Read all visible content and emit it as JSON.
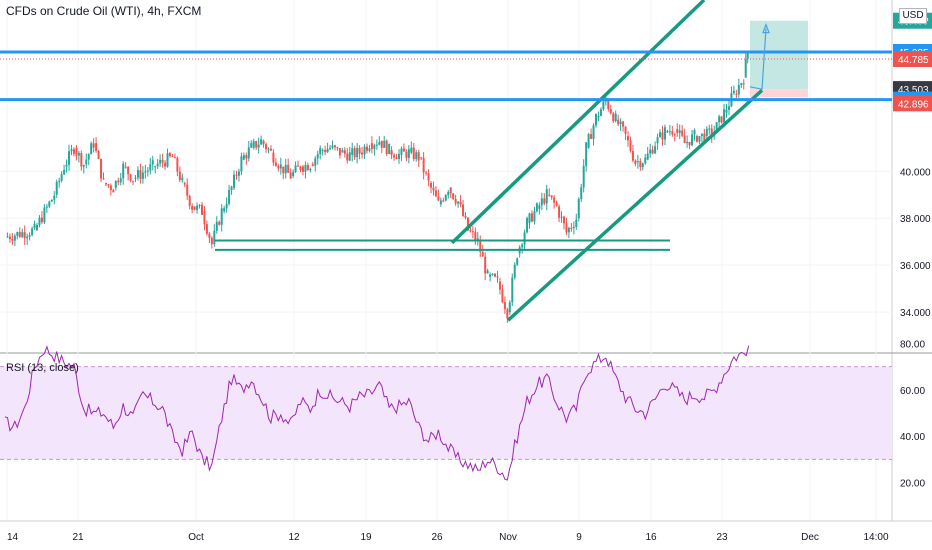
{
  "header": {
    "title": "CFDs on Crude Oil (WTI), 4h, FXCM",
    "currency": "USD"
  },
  "rsi": {
    "title": "RSI (13, close)",
    "upper_band": 70,
    "lower_band": 30,
    "y_ticks": [
      "80.00",
      "60.00",
      "40.00",
      "20.00"
    ]
  },
  "colors": {
    "up": "#26a69a",
    "down": "#ef5350",
    "blue_line": "#2196f3",
    "channel": "#179b7e",
    "rsi_line": "#9c27b0",
    "rsi_fill": "#f3e5fc",
    "target_zone": "#b2dfdb",
    "stop_zone": "#ffcdd2"
  },
  "chart_data": {
    "type": "candlestick",
    "title": "CFDs on Crude Oil (WTI), 4h, FXCM",
    "ylim": [
      32.3,
      47.3
    ],
    "y_ticks": [
      "34.000",
      "36.000",
      "38.000",
      "40.000"
    ],
    "x_ticks": [
      "14",
      "21",
      "Oct",
      "12",
      "19",
      "26",
      "Nov",
      "9",
      "16",
      "23",
      "Dec",
      "14:00"
    ],
    "price_labels": [
      {
        "value": "46.4??",
        "price": 46.417,
        "color": "#26a69a"
      },
      {
        "value": "45.085",
        "price": 45.085,
        "color": "#2196f3"
      },
      {
        "value": "44.785",
        "price": 44.785,
        "color": "#ef5350"
      },
      {
        "value": "43.503",
        "price": 43.503,
        "color": "#363a45"
      },
      {
        "value": "43.055",
        "price": 43.055,
        "color": "#2196f3"
      },
      {
        "value": "42.896",
        "price": 42.896,
        "color": "#ef5350"
      }
    ],
    "horizontal_levels": [
      45.085,
      43.055
    ],
    "current_price": 44.785,
    "support_lines": [
      {
        "from": [
          "Oct 1",
          37.05
        ],
        "to": [
          "Nov 16",
          37.05
        ]
      },
      {
        "from": [
          "Oct 1",
          36.65
        ],
        "to": [
          "Nov 16",
          36.65
        ]
      }
    ],
    "channel": {
      "lower": {
        "from": [
          "Nov 1",
          33.65
        ],
        "to": [
          "Nov 25",
          43.45
        ]
      },
      "upper": {
        "from": [
          "Oct 26",
          36.95
        ],
        "to": [
          "Nov 20",
          47.3
        ]
      }
    },
    "position": {
      "entry": 43.503,
      "target": 46.417,
      "stop": 43.15
    },
    "path_points": [
      {
        "day": "Nov 24",
        "price": 43.6
      },
      {
        "day": "Nov 25",
        "price": 43.5
      },
      {
        "day": "Nov 25",
        "price": 46.25
      }
    ],
    "price_path": [
      {
        "x": 0,
        "y": 37.2
      },
      {
        "x": 3,
        "y": 37.5
      },
      {
        "x": 5,
        "y": 39.0
      },
      {
        "x": 6,
        "y": 40.2
      },
      {
        "x": 7,
        "y": 41.0
      },
      {
        "x": 8,
        "y": 40.3
      },
      {
        "x": 9,
        "y": 41.2
      },
      {
        "x": 10,
        "y": 39.5
      },
      {
        "x": 11,
        "y": 39.3
      },
      {
        "x": 12,
        "y": 40.2
      },
      {
        "x": 13,
        "y": 39.7
      },
      {
        "x": 15,
        "y": 40.2
      },
      {
        "x": 17,
        "y": 40.6
      },
      {
        "x": 18,
        "y": 39.5
      },
      {
        "x": 19,
        "y": 38.5
      },
      {
        "x": 20,
        "y": 38.3
      },
      {
        "x": 21,
        "y": 36.9
      },
      {
        "x": 22,
        "y": 38.3
      },
      {
        "x": 23,
        "y": 39.3
      },
      {
        "x": 24,
        "y": 40.5
      },
      {
        "x": 25,
        "y": 41.0
      },
      {
        "x": 26,
        "y": 41.3
      },
      {
        "x": 27,
        "y": 40.8
      },
      {
        "x": 28,
        "y": 40.2
      },
      {
        "x": 29,
        "y": 39.8
      },
      {
        "x": 30,
        "y": 40.2
      },
      {
        "x": 31,
        "y": 40.3
      },
      {
        "x": 32,
        "y": 40.9
      },
      {
        "x": 33,
        "y": 41.0
      },
      {
        "x": 34,
        "y": 40.8
      },
      {
        "x": 35,
        "y": 40.7
      },
      {
        "x": 36,
        "y": 40.8
      },
      {
        "x": 37,
        "y": 41.2
      },
      {
        "x": 38,
        "y": 41.3
      },
      {
        "x": 39,
        "y": 40.9
      },
      {
        "x": 40,
        "y": 40.7
      },
      {
        "x": 41,
        "y": 40.8
      },
      {
        "x": 42,
        "y": 40.6
      },
      {
        "x": 43,
        "y": 39.5
      },
      {
        "x": 44,
        "y": 38.6
      },
      {
        "x": 45,
        "y": 39.3
      },
      {
        "x": 46,
        "y": 38.7
      },
      {
        "x": 47,
        "y": 37.5
      },
      {
        "x": 48,
        "y": 37.0
      },
      {
        "x": 49,
        "y": 35.5
      },
      {
        "x": 50,
        "y": 35.3
      },
      {
        "x": 51,
        "y": 34.0
      },
      {
        "x": 52,
        "y": 36.5
      },
      {
        "x": 53,
        "y": 37.8
      },
      {
        "x": 54,
        "y": 38.4
      },
      {
        "x": 55,
        "y": 39.0
      },
      {
        "x": 56,
        "y": 38.5
      },
      {
        "x": 57,
        "y": 37.4
      },
      {
        "x": 58,
        "y": 38.0
      },
      {
        "x": 59,
        "y": 41.0
      },
      {
        "x": 60,
        "y": 42.3
      },
      {
        "x": 61,
        "y": 43.0
      },
      {
        "x": 62,
        "y": 42.2
      },
      {
        "x": 63,
        "y": 41.5
      },
      {
        "x": 64,
        "y": 40.4
      },
      {
        "x": 65,
        "y": 40.5
      },
      {
        "x": 66,
        "y": 41.2
      },
      {
        "x": 67,
        "y": 41.7
      },
      {
        "x": 68,
        "y": 41.8
      },
      {
        "x": 69,
        "y": 41.2
      },
      {
        "x": 70,
        "y": 41.5
      },
      {
        "x": 71,
        "y": 41.5
      },
      {
        "x": 72,
        "y": 41.7
      },
      {
        "x": 73,
        "y": 42.5
      },
      {
        "x": 74,
        "y": 43.3
      },
      {
        "x": 75,
        "y": 44.0
      },
      {
        "x": 75.4,
        "y": 45.1
      }
    ],
    "rsi_path": [
      {
        "x": 0,
        "y": 46
      },
      {
        "x": 1,
        "y": 44
      },
      {
        "x": 2,
        "y": 52
      },
      {
        "x": 3,
        "y": 70
      },
      {
        "x": 4,
        "y": 78
      },
      {
        "x": 5,
        "y": 75
      },
      {
        "x": 6,
        "y": 72
      },
      {
        "x": 7,
        "y": 70
      },
      {
        "x": 8,
        "y": 52
      },
      {
        "x": 9,
        "y": 50
      },
      {
        "x": 10,
        "y": 50
      },
      {
        "x": 11,
        "y": 44
      },
      {
        "x": 12,
        "y": 53
      },
      {
        "x": 13,
        "y": 48
      },
      {
        "x": 14,
        "y": 58
      },
      {
        "x": 15,
        "y": 55
      },
      {
        "x": 16,
        "y": 52
      },
      {
        "x": 17,
        "y": 40
      },
      {
        "x": 18,
        "y": 34
      },
      {
        "x": 19,
        "y": 42
      },
      {
        "x": 20,
        "y": 30
      },
      {
        "x": 21,
        "y": 27
      },
      {
        "x": 22,
        "y": 48
      },
      {
        "x": 23,
        "y": 65
      },
      {
        "x": 24,
        "y": 60
      },
      {
        "x": 25,
        "y": 65
      },
      {
        "x": 26,
        "y": 57
      },
      {
        "x": 27,
        "y": 48
      },
      {
        "x": 28,
        "y": 50
      },
      {
        "x": 29,
        "y": 45
      },
      {
        "x": 30,
        "y": 55
      },
      {
        "x": 31,
        "y": 52
      },
      {
        "x": 32,
        "y": 60
      },
      {
        "x": 33,
        "y": 57
      },
      {
        "x": 34,
        "y": 55
      },
      {
        "x": 35,
        "y": 53
      },
      {
        "x": 36,
        "y": 57
      },
      {
        "x": 37,
        "y": 58
      },
      {
        "x": 38,
        "y": 62
      },
      {
        "x": 39,
        "y": 52
      },
      {
        "x": 40,
        "y": 53
      },
      {
        "x": 41,
        "y": 55
      },
      {
        "x": 42,
        "y": 44
      },
      {
        "x": 43,
        "y": 38
      },
      {
        "x": 44,
        "y": 42
      },
      {
        "x": 45,
        "y": 35
      },
      {
        "x": 46,
        "y": 30
      },
      {
        "x": 47,
        "y": 28
      },
      {
        "x": 48,
        "y": 25
      },
      {
        "x": 49,
        "y": 30
      },
      {
        "x": 50,
        "y": 27
      },
      {
        "x": 51,
        "y": 22
      },
      {
        "x": 52,
        "y": 40
      },
      {
        "x": 53,
        "y": 55
      },
      {
        "x": 54,
        "y": 62
      },
      {
        "x": 55,
        "y": 65
      },
      {
        "x": 56,
        "y": 55
      },
      {
        "x": 57,
        "y": 48
      },
      {
        "x": 58,
        "y": 52
      },
      {
        "x": 59,
        "y": 68
      },
      {
        "x": 60,
        "y": 72
      },
      {
        "x": 61,
        "y": 75
      },
      {
        "x": 62,
        "y": 65
      },
      {
        "x": 63,
        "y": 57
      },
      {
        "x": 64,
        "y": 52
      },
      {
        "x": 65,
        "y": 50
      },
      {
        "x": 66,
        "y": 56
      },
      {
        "x": 67,
        "y": 63
      },
      {
        "x": 68,
        "y": 60
      },
      {
        "x": 69,
        "y": 56
      },
      {
        "x": 70,
        "y": 58
      },
      {
        "x": 71,
        "y": 57
      },
      {
        "x": 72,
        "y": 60
      },
      {
        "x": 73,
        "y": 67
      },
      {
        "x": 74,
        "y": 74
      },
      {
        "x": 75,
        "y": 76
      },
      {
        "x": 75.5,
        "y": 79
      }
    ]
  }
}
